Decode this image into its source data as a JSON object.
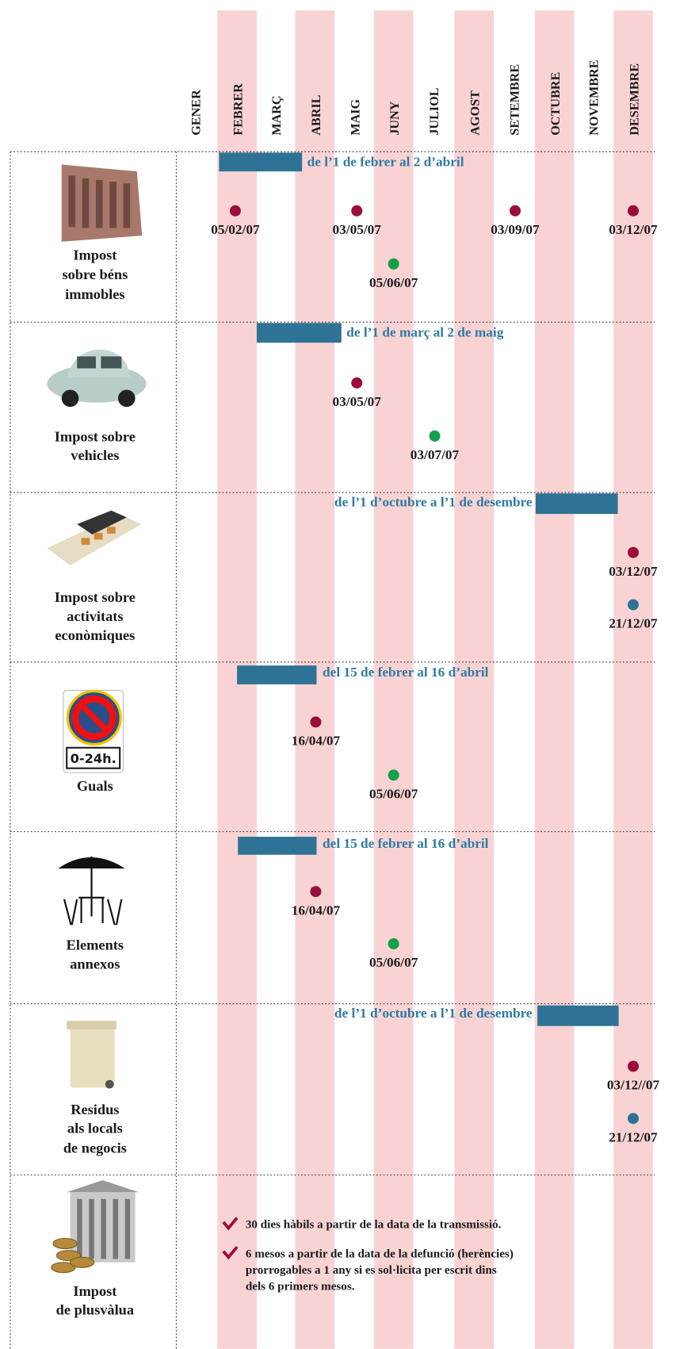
{
  "months": [
    "GENER",
    "FEBRER",
    "MARÇ",
    "ABRIL",
    "MAIG",
    "JUNY",
    "JULIOL",
    "AGOST",
    "SETEMBRE",
    "OCTUBRE",
    "NOVEMBRE",
    "DESEMBRE"
  ],
  "rows": [
    {
      "label": [
        "Impost",
        "sobre béns",
        "immobles"
      ],
      "period": "de l’1 de febrer al 2 d’abril",
      "dates": [
        {
          "label": "05/02/07",
          "color": "#9b0d3a"
        },
        {
          "label": "03/05/07",
          "color": "#9b0d3a"
        },
        {
          "label": "03/09/07",
          "color": "#9b0d3a"
        },
        {
          "label": "03/12/07",
          "color": "#9b0d3a"
        },
        {
          "label": "05/06/07",
          "color": "#12a04a"
        }
      ]
    },
    {
      "label": [
        "Impost sobre",
        "vehicles"
      ],
      "period": "de l’1 de març al 2 de maig",
      "dates": [
        {
          "label": "03/05/07",
          "color": "#9b0d3a"
        },
        {
          "label": "03/07/07",
          "color": "#12a04a"
        }
      ]
    },
    {
      "label": [
        "Impost sobre",
        "activitats",
        "econòmiques"
      ],
      "period": "de l’1 d’octubre a l’1 de desembre",
      "dates": [
        {
          "label": "03/12/07",
          "color": "#9b0d3a"
        },
        {
          "label": "21/12/07",
          "color": "#2e7396"
        }
      ]
    },
    {
      "label": [
        "Guals"
      ],
      "period": "del 15 de febrer al 16 d’abril",
      "dates": [
        {
          "label": "16/04/07",
          "color": "#9b0d3a"
        },
        {
          "label": "05/06/07",
          "color": "#12a04a"
        }
      ]
    },
    {
      "label": [
        "Elements",
        "annexos"
      ],
      "period": "del 15 de febrer al 16 d’abril",
      "dates": [
        {
          "label": "16/04/07",
          "color": "#9b0d3a"
        },
        {
          "label": "05/06/07",
          "color": "#12a04a"
        }
      ]
    },
    {
      "label": [
        "Residus",
        "als locals",
        "de negocis"
      ],
      "period": "de l’1 d’octubre a l’1 de desembre",
      "dates": [
        {
          "label": "03/12//07",
          "color": "#9b0d3a"
        },
        {
          "label": "21/12/07",
          "color": "#2e7396"
        }
      ]
    },
    {
      "label": [
        "Impost",
        "de plusvàlua"
      ],
      "notes": [
        [
          "30 dies hàbils a partir de la data de la transmissió."
        ],
        [
          "6 mesos a partir de la data de la defunció (herències)",
          "prorrogables a 1 any si es sol·licita per escrit dins",
          "dels 6 primers mesos."
        ]
      ]
    }
  ],
  "sign_text": "0-24h."
}
